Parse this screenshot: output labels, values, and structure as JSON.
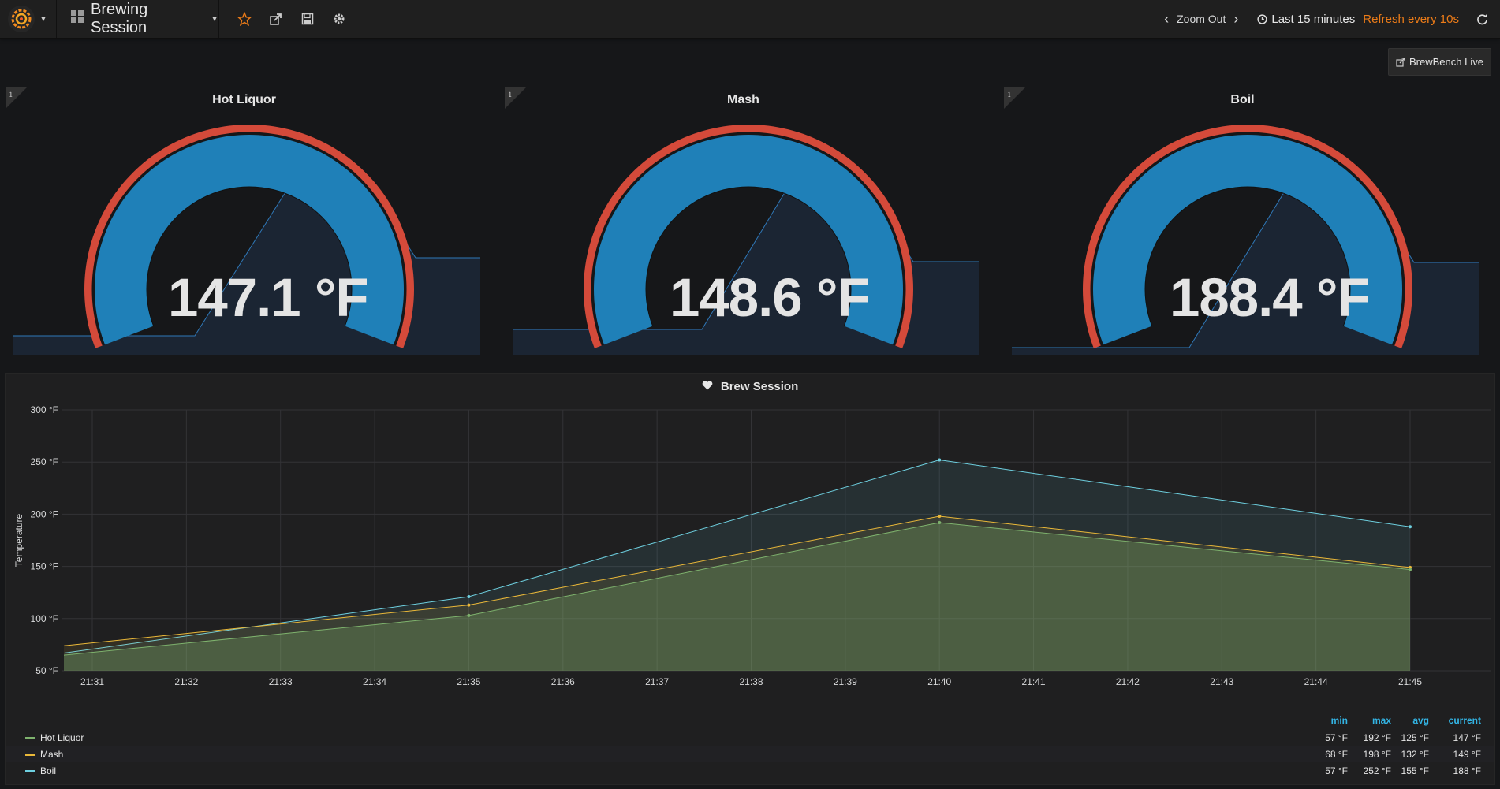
{
  "nav": {
    "dashboard_title": "Brewing Session",
    "zoom_out": "Zoom Out",
    "time_range": "Last 15 minutes",
    "refresh": "Refresh every 10s",
    "link_button": "BrewBench Live"
  },
  "gauges": [
    {
      "title": "Hot Liquor",
      "value": "147.1 °F",
      "reading": 147.1
    },
    {
      "title": "Mash",
      "value": "148.6 °F",
      "reading": 148.6
    },
    {
      "title": "Boil",
      "value": "188.4 °F",
      "reading": 188.4
    }
  ],
  "graph": {
    "title": "Brew Session",
    "legend_headers": {
      "min": "min",
      "max": "max",
      "avg": "avg",
      "current": "current"
    },
    "legend": [
      {
        "name": "Hot Liquor",
        "color": "#7eb26d",
        "min": "57 °F",
        "max": "192 °F",
        "avg": "125 °F",
        "current": "147 °F"
      },
      {
        "name": "Mash",
        "color": "#eab839",
        "min": "68 °F",
        "max": "198 °F",
        "avg": "132 °F",
        "current": "149 °F"
      },
      {
        "name": "Boil",
        "color": "#6ed0e0",
        "min": "57 °F",
        "max": "252 °F",
        "avg": "155 °F",
        "current": "188 °F"
      }
    ]
  },
  "chart_data": {
    "type": "line",
    "title": "Brew Session",
    "xlabel": "",
    "ylabel": "Temperature",
    "categories": [
      "21:31",
      "21:32",
      "21:33",
      "21:34",
      "21:35",
      "21:36",
      "21:37",
      "21:38",
      "21:39",
      "21:40",
      "21:41",
      "21:42",
      "21:43",
      "21:44",
      "21:45"
    ],
    "y_ticks": [
      "50 °F",
      "100 °F",
      "150 °F",
      "200 °F",
      "250 °F",
      "300 °F"
    ],
    "ylim": [
      50,
      300
    ],
    "x_range": [
      0,
      14
    ],
    "series": [
      {
        "name": "Hot Liquor",
        "color": "#7eb26d",
        "points": [
          [
            -0.3,
            65
          ],
          [
            4,
            103
          ],
          [
            9,
            192
          ],
          [
            14,
            147
          ]
        ]
      },
      {
        "name": "Mash",
        "color": "#eab839",
        "points": [
          [
            -0.3,
            74
          ],
          [
            4,
            113
          ],
          [
            9,
            198
          ],
          [
            14,
            149
          ]
        ]
      },
      {
        "name": "Boil",
        "color": "#6ed0e0",
        "points": [
          [
            -0.3,
            67
          ],
          [
            4,
            121
          ],
          [
            9,
            252
          ],
          [
            14,
            188
          ]
        ]
      }
    ]
  }
}
